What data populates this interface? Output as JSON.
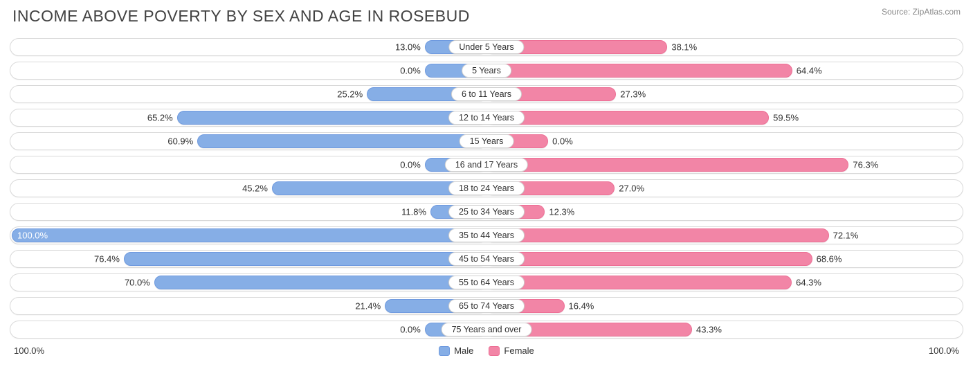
{
  "title": "INCOME ABOVE POVERTY BY SEX AND AGE IN ROSEBUD",
  "source": "Source: ZipAtlas.com",
  "colors": {
    "male_fill": "#86aee6",
    "male_border": "#6f9adf",
    "female_fill": "#f285a6",
    "female_border": "#ed6f95",
    "text": "#303030",
    "row_border": "#d9d9d9"
  },
  "axis": {
    "left": "100.0%",
    "right": "100.0%",
    "max": 100.0
  },
  "legend": {
    "male": "Male",
    "female": "Female"
  },
  "rows": [
    {
      "label": "Under 5 Years",
      "male": 13.0,
      "female": 38.1,
      "male_txt": "13.0%",
      "female_txt": "38.1%",
      "female_min": 9
    },
    {
      "label": "5 Years",
      "male": 0.0,
      "female": 64.4,
      "male_txt": "0.0%",
      "female_txt": "64.4%",
      "male_min": 13
    },
    {
      "label": "6 to 11 Years",
      "male": 25.2,
      "female": 27.3,
      "male_txt": "25.2%",
      "female_txt": "27.3%"
    },
    {
      "label": "12 to 14 Years",
      "male": 65.2,
      "female": 59.5,
      "male_txt": "65.2%",
      "female_txt": "59.5%"
    },
    {
      "label": "15 Years",
      "male": 60.9,
      "female": 0.0,
      "male_txt": "60.9%",
      "female_txt": "0.0%",
      "female_min": 13
    },
    {
      "label": "16 and 17 Years",
      "male": 0.0,
      "female": 76.3,
      "male_txt": "0.0%",
      "female_txt": "76.3%",
      "male_min": 13
    },
    {
      "label": "18 to 24 Years",
      "male": 45.2,
      "female": 27.0,
      "male_txt": "45.2%",
      "female_txt": "27.0%"
    },
    {
      "label": "25 to 34 Years",
      "male": 11.8,
      "female": 12.3,
      "male_txt": "11.8%",
      "female_txt": "12.3%"
    },
    {
      "label": "35 to 44 Years",
      "male": 100.0,
      "female": 72.1,
      "male_txt": "100.0%",
      "female_txt": "72.1%",
      "male_inside": true
    },
    {
      "label": "45 to 54 Years",
      "male": 76.4,
      "female": 68.6,
      "male_txt": "76.4%",
      "female_txt": "68.6%"
    },
    {
      "label": "55 to 64 Years",
      "male": 70.0,
      "female": 64.3,
      "male_txt": "70.0%",
      "female_txt": "64.3%"
    },
    {
      "label": "65 to 74 Years",
      "male": 21.4,
      "female": 16.4,
      "male_txt": "21.4%",
      "female_txt": "16.4%"
    },
    {
      "label": "75 Years and over",
      "male": 0.0,
      "female": 43.3,
      "male_txt": "0.0%",
      "female_txt": "43.3%",
      "male_min": 13
    }
  ]
}
